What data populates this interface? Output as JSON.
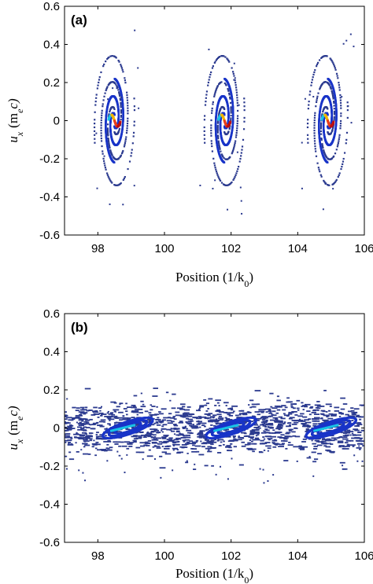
{
  "chart_data": [
    {
      "type": "scatter",
      "panel_label": "(a)",
      "xlabel": "Position (1/k",
      "xlabel_sub": "0",
      "xlabel_close": ")",
      "ylabel": "u",
      "ylabel_sub": "x",
      "ylabel_unit": "(m",
      "ylabel_unit_sub": "e",
      "ylabel_unit_c": "c)",
      "xlim": [
        97,
        106
      ],
      "ylim": [
        -0.6,
        0.6
      ],
      "xticks": [
        98,
        100,
        102,
        104,
        106
      ],
      "yticks": [
        -0.6,
        -0.4,
        -0.2,
        0,
        0.2,
        0.4,
        0.6
      ],
      "ytick_labels": [
        "-0.6",
        "-0.4",
        "-0.2",
        "0",
        "0.2",
        "0.4",
        "0.6"
      ],
      "xtick_labels": [
        "98",
        "100",
        "102",
        "104",
        "106"
      ],
      "structure": "spiral",
      "vortex_centers": [
        98.5,
        101.8,
        104.9
      ],
      "inner_color": "#1a35c8",
      "outer_color": "#2b3a8f",
      "core_colors": [
        "#19c2e6",
        "#f2b705",
        "#e8401c",
        "#c01010"
      ]
    },
    {
      "type": "scatter",
      "panel_label": "(b)",
      "xlabel": "Position (1/k",
      "xlabel_sub": "0",
      "xlabel_close": ")",
      "ylabel": "u",
      "ylabel_sub": "x",
      "ylabel_unit": "(m",
      "ylabel_unit_sub": "e",
      "ylabel_unit_c": "c)",
      "xlim": [
        97,
        106
      ],
      "ylim": [
        -0.6,
        0.6
      ],
      "xticks": [
        98,
        100,
        102,
        104,
        106
      ],
      "yticks": [
        -0.6,
        -0.4,
        -0.2,
        0,
        0.2,
        0.4,
        0.6
      ],
      "ytick_labels": [
        "-0.6",
        "-0.4",
        "-0.2",
        "0",
        "0.2",
        "0.4",
        "0.6"
      ],
      "xtick_labels": [
        "98",
        "100",
        "102",
        "104",
        "106"
      ],
      "structure": "flattened",
      "vortex_centers": [
        98.9,
        102.0,
        105.0
      ],
      "inner_color": "#1a35c8",
      "outer_color": "#2b3a8f",
      "core_colors": [
        "#19c2e6",
        "#6fd3ef"
      ]
    }
  ]
}
